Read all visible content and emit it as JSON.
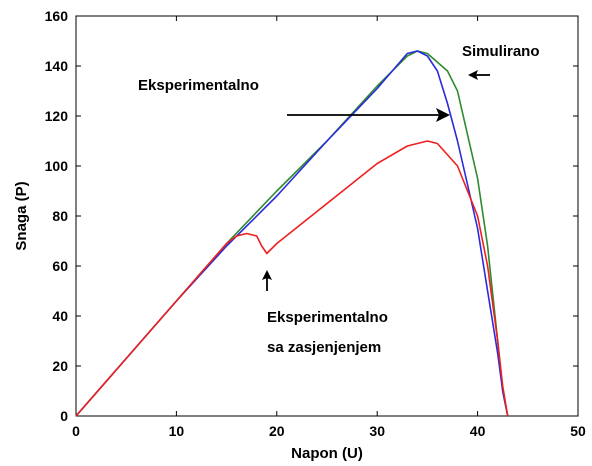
{
  "chart_data": {
    "type": "line",
    "title": "",
    "xlabel": "Napon (U)",
    "ylabel": "Snaga (P)",
    "xlim": [
      0,
      50
    ],
    "ylim": [
      0,
      160
    ],
    "xticks": [
      0,
      10,
      20,
      30,
      40,
      50
    ],
    "yticks": [
      0,
      20,
      40,
      60,
      80,
      100,
      120,
      140,
      160
    ],
    "grid": false,
    "series": [
      {
        "color": "#2e8b2e",
        "points": [
          [
            0,
            0
          ],
          [
            5,
            23
          ],
          [
            10,
            46
          ],
          [
            15,
            69
          ],
          [
            20,
            90
          ],
          [
            25,
            110
          ],
          [
            30,
            132
          ],
          [
            33,
            144
          ],
          [
            34,
            146
          ],
          [
            35,
            145
          ],
          [
            37,
            138
          ],
          [
            38,
            130
          ],
          [
            40,
            95
          ],
          [
            41,
            68
          ],
          [
            42,
            30
          ],
          [
            42.5,
            10
          ],
          [
            43,
            0
          ]
        ]
      },
      {
        "color": "#2b2bdd",
        "points": [
          [
            0,
            0
          ],
          [
            5,
            23
          ],
          [
            10,
            46
          ],
          [
            15,
            68
          ],
          [
            20,
            88
          ],
          [
            25,
            110
          ],
          [
            30,
            131
          ],
          [
            33,
            145
          ],
          [
            34,
            146
          ],
          [
            35,
            144
          ],
          [
            36,
            138
          ],
          [
            37,
            125
          ],
          [
            38,
            110
          ],
          [
            40,
            75
          ],
          [
            41,
            50
          ],
          [
            42,
            25
          ],
          [
            42.5,
            10
          ],
          [
            43,
            0
          ]
        ]
      },
      {
        "color": "#ee2020",
        "points": [
          [
            0,
            0
          ],
          [
            5,
            23
          ],
          [
            10,
            46
          ],
          [
            15,
            69
          ],
          [
            16,
            72
          ],
          [
            17,
            73
          ],
          [
            18,
            72
          ],
          [
            18.5,
            68
          ],
          [
            19,
            65
          ],
          [
            20,
            69
          ],
          [
            25,
            85
          ],
          [
            30,
            101
          ],
          [
            33,
            108
          ],
          [
            35,
            110
          ],
          [
            36,
            109
          ],
          [
            38,
            100
          ],
          [
            40,
            80
          ],
          [
            41,
            60
          ],
          [
            42,
            30
          ],
          [
            42.5,
            12
          ],
          [
            43,
            0
          ]
        ]
      }
    ],
    "annotations": [
      {
        "text": "Simulirano"
      },
      {
        "text": "Eksperimentalno"
      },
      {
        "text1": "Eksperimentalno",
        "text2": "sa zasjenjenjem"
      }
    ]
  }
}
